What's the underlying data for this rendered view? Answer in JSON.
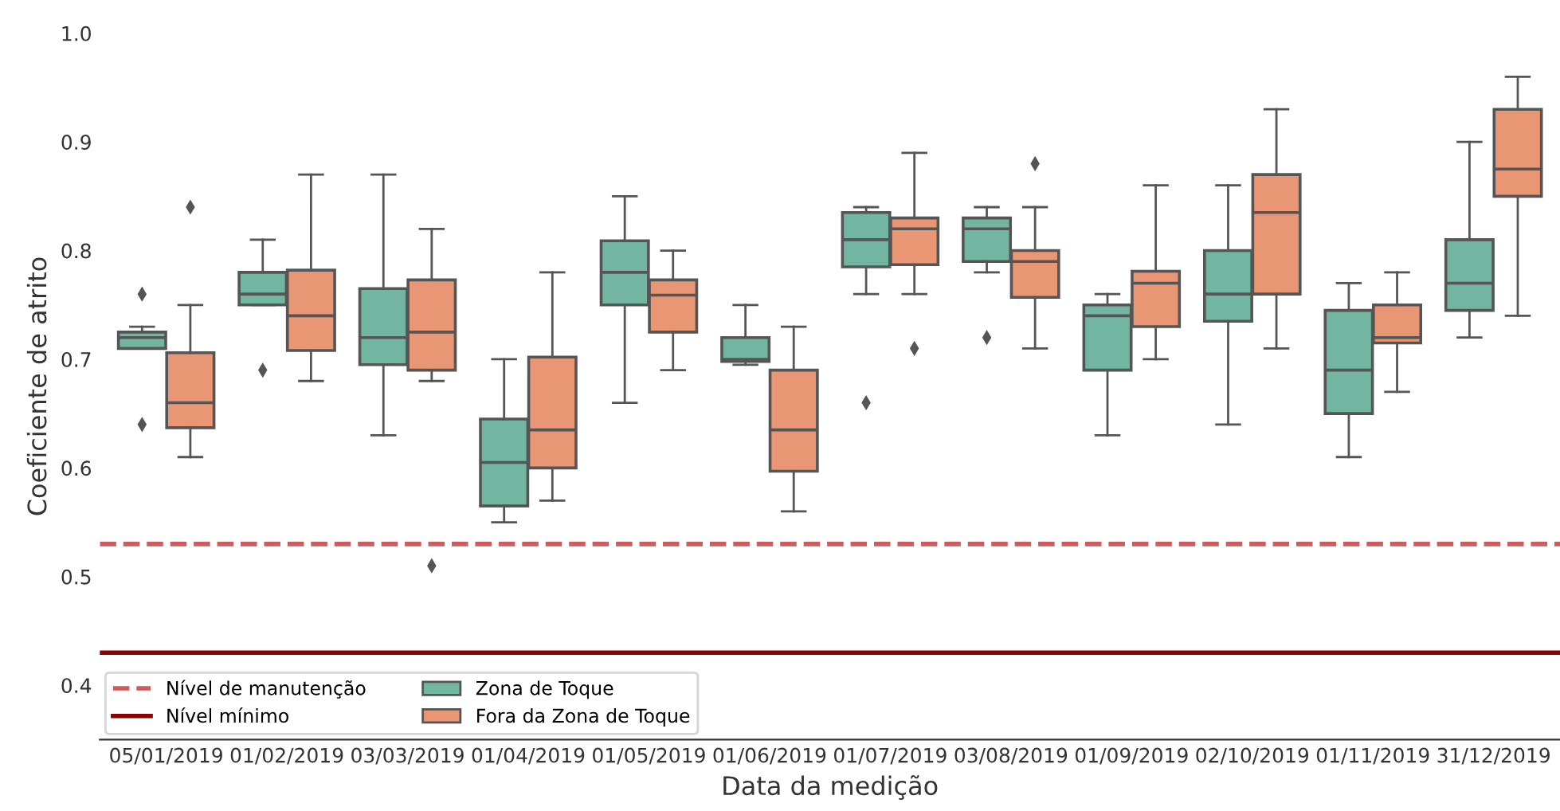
{
  "chart_data": {
    "type": "box",
    "xlabel": "Data da medição",
    "ylabel": "Coeficiente de atrito",
    "categories": [
      "05/01/2019",
      "01/02/2019",
      "03/03/2019",
      "01/04/2019",
      "01/05/2019",
      "01/06/2019",
      "01/07/2019",
      "03/08/2019",
      "01/09/2019",
      "02/10/2019",
      "01/11/2019",
      "31/12/2019"
    ],
    "ylim": [
      0.35,
      1.0
    ],
    "yticks": [
      0.4,
      0.5,
      0.6,
      0.7,
      0.8,
      0.9,
      {
        "value": 1.0,
        "label": "1.0"
      }
    ],
    "grid": false,
    "legend": "bottom left",
    "ref_lines": [
      {
        "axis": "y",
        "value": 0.53,
        "label": "Nível de manutenção",
        "color": "#cd5c5c",
        "line_style": "dashed"
      },
      {
        "axis": "y",
        "value": 0.43,
        "label": "Nível mínimo",
        "color": "#8b0000",
        "line_style": "solid"
      }
    ],
    "series": [
      {
        "name": "Zona de Toque",
        "color": "#72b6a1",
        "boxes": [
          {
            "low": 0.71,
            "q1": 0.71,
            "median": 0.72,
            "q3": 0.725,
            "high": 0.73,
            "outliers": [
              0.76,
              0.64
            ]
          },
          {
            "low": 0.75,
            "q1": 0.75,
            "median": 0.76,
            "q3": 0.78,
            "high": 0.81,
            "outliers": [
              0.69
            ]
          },
          {
            "low": 0.63,
            "q1": 0.695,
            "median": 0.72,
            "q3": 0.765,
            "high": 0.87
          },
          {
            "low": 0.55,
            "q1": 0.565,
            "median": 0.605,
            "q3": 0.645,
            "high": 0.7
          },
          {
            "low": 0.66,
            "q1": 0.75,
            "median": 0.78,
            "q3": 0.809,
            "high": 0.85
          },
          {
            "low": 0.695,
            "q1": 0.698,
            "median": 0.7,
            "q3": 0.72,
            "high": 0.75
          },
          {
            "low": 0.76,
            "q1": 0.785,
            "median": 0.81,
            "q3": 0.835,
            "high": 0.84,
            "outliers": [
              0.66
            ]
          },
          {
            "low": 0.78,
            "q1": 0.79,
            "median": 0.82,
            "q3": 0.83,
            "high": 0.84,
            "outliers": [
              0.72
            ]
          },
          {
            "low": 0.63,
            "q1": 0.69,
            "median": 0.74,
            "q3": 0.75,
            "high": 0.76
          },
          {
            "low": 0.64,
            "q1": 0.735,
            "median": 0.76,
            "q3": 0.8,
            "high": 0.86
          },
          {
            "low": 0.61,
            "q1": 0.65,
            "median": 0.69,
            "q3": 0.745,
            "high": 0.77
          },
          {
            "low": 0.72,
            "q1": 0.745,
            "median": 0.77,
            "q3": 0.81,
            "high": 0.9
          }
        ]
      },
      {
        "name": "Fora da Zona de Toque",
        "color": "#e99675",
        "boxes": [
          {
            "low": 0.61,
            "q1": 0.637,
            "median": 0.66,
            "q3": 0.706,
            "high": 0.75,
            "outliers": [
              0.84
            ]
          },
          {
            "low": 0.68,
            "q1": 0.708,
            "median": 0.74,
            "q3": 0.782,
            "high": 0.87
          },
          {
            "low": 0.68,
            "q1": 0.69,
            "median": 0.725,
            "q3": 0.773,
            "high": 0.82,
            "outliers": [
              0.51
            ]
          },
          {
            "low": 0.57,
            "q1": 0.6,
            "median": 0.635,
            "q3": 0.702,
            "high": 0.78
          },
          {
            "low": 0.69,
            "q1": 0.725,
            "median": 0.759,
            "q3": 0.773,
            "high": 0.8
          },
          {
            "low": 0.56,
            "q1": 0.597,
            "median": 0.635,
            "q3": 0.69,
            "high": 0.73
          },
          {
            "low": 0.76,
            "q1": 0.787,
            "median": 0.82,
            "q3": 0.83,
            "high": 0.89,
            "outliers": [
              0.71
            ]
          },
          {
            "low": 0.71,
            "q1": 0.757,
            "median": 0.79,
            "q3": 0.8,
            "high": 0.84,
            "outliers": [
              0.88
            ]
          },
          {
            "low": 0.7,
            "q1": 0.73,
            "median": 0.77,
            "q3": 0.781,
            "high": 0.86
          },
          {
            "low": 0.71,
            "q1": 0.76,
            "median": 0.835,
            "q3": 0.87,
            "high": 0.93
          },
          {
            "low": 0.67,
            "q1": 0.715,
            "median": 0.72,
            "q3": 0.75,
            "high": 0.78
          },
          {
            "low": 0.74,
            "q1": 0.85,
            "median": 0.875,
            "q3": 0.93,
            "high": 0.96
          }
        ]
      }
    ]
  }
}
